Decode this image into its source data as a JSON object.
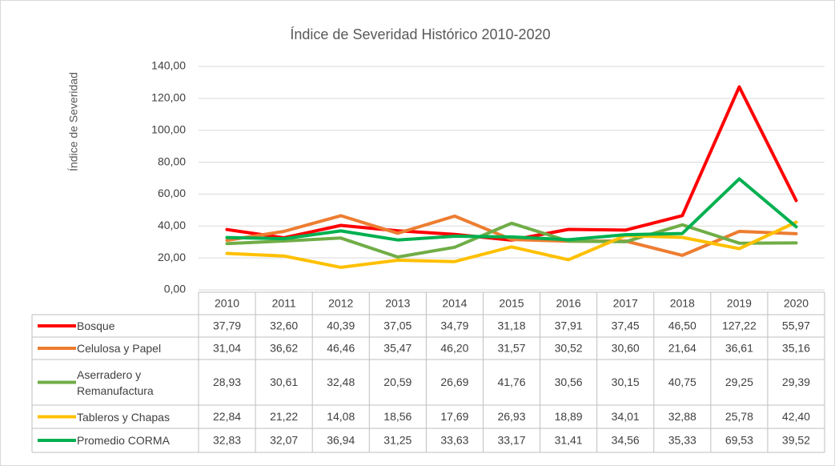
{
  "chart_data": {
    "type": "line",
    "title": "Índice de Severidad Histórico 2010-2020",
    "y_label": "Índice de Severidad",
    "categories": [
      "2010",
      "2011",
      "2012",
      "2013",
      "2014",
      "2015",
      "2016",
      "2017",
      "2018",
      "2019",
      "2020"
    ],
    "ylim": [
      0,
      140
    ],
    "yticks": [
      {
        "value": 0,
        "label": "0,00"
      },
      {
        "value": 20,
        "label": "20,00"
      },
      {
        "value": 40,
        "label": "40,00"
      },
      {
        "value": 60,
        "label": "60,00"
      },
      {
        "value": 80,
        "label": "80,00"
      },
      {
        "value": 100,
        "label": "100,00"
      },
      {
        "value": 120,
        "label": "120,00"
      },
      {
        "value": 140,
        "label": "140,00"
      }
    ],
    "grid": true,
    "series": [
      {
        "name": "Bosque",
        "color": "#ff0000",
        "values": [
          37.79,
          32.6,
          40.39,
          37.05,
          34.79,
          31.18,
          37.91,
          37.45,
          46.5,
          127.22,
          55.97
        ],
        "value_labels": [
          "37,79",
          "32,60",
          "40,39",
          "37,05",
          "34,79",
          "31,18",
          "37,91",
          "37,45",
          "46,50",
          "127,22",
          "55,97"
        ]
      },
      {
        "name": "Celulosa y Papel",
        "color": "#ed7d31",
        "values": [
          31.04,
          36.62,
          46.46,
          35.47,
          46.2,
          31.57,
          30.52,
          30.6,
          21.64,
          36.61,
          35.16
        ],
        "value_labels": [
          "31,04",
          "36,62",
          "46,46",
          "35,47",
          "46,20",
          "31,57",
          "30,52",
          "30,60",
          "21,64",
          "36,61",
          "35,16"
        ]
      },
      {
        "name": "Aserradero y Remanufactura",
        "color": "#70ad47",
        "values": [
          28.93,
          30.61,
          32.48,
          20.59,
          26.69,
          41.76,
          30.56,
          30.15,
          40.75,
          29.25,
          29.39
        ],
        "value_labels": [
          "28,93",
          "30,61",
          "32,48",
          "20,59",
          "26,69",
          "41,76",
          "30,56",
          "30,15",
          "40,75",
          "29,25",
          "29,39"
        ]
      },
      {
        "name": "Tableros y Chapas",
        "color": "#ffc000",
        "values": [
          22.84,
          21.22,
          14.08,
          18.56,
          17.69,
          26.93,
          18.89,
          34.01,
          32.88,
          25.78,
          42.4
        ],
        "value_labels": [
          "22,84",
          "21,22",
          "14,08",
          "18,56",
          "17,69",
          "26,93",
          "18,89",
          "34,01",
          "32,88",
          "25,78",
          "42,40"
        ]
      },
      {
        "name": "Promedio CORMA",
        "color": "#00b050",
        "values": [
          32.83,
          32.07,
          36.94,
          31.25,
          33.63,
          33.17,
          31.41,
          34.56,
          35.33,
          69.53,
          39.52
        ],
        "value_labels": [
          "32,83",
          "32,07",
          "36,94",
          "31,25",
          "33,63",
          "33,17",
          "31,41",
          "34,56",
          "35,33",
          "69,53",
          "39,52"
        ]
      }
    ]
  }
}
